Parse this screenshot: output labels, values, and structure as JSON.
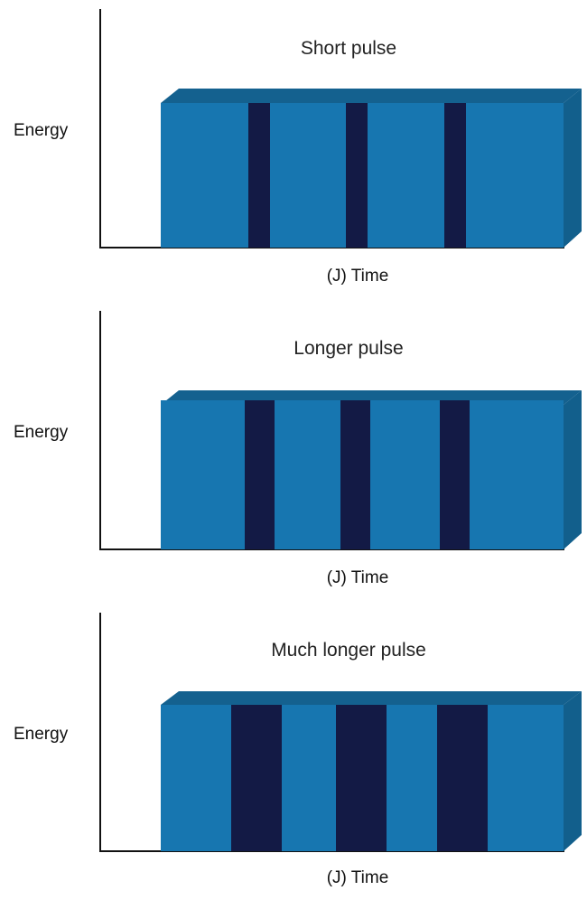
{
  "panels": [
    {
      "title": "Short pulse",
      "ylabel": "Energy",
      "xlabel": "(J) Time",
      "pulse_width": "short",
      "pulse_count": 3
    },
    {
      "title": "Longer pulse",
      "ylabel": "Energy",
      "xlabel": "(J) Time",
      "pulse_width": "longer",
      "pulse_count": 3
    },
    {
      "title": "Much longer pulse",
      "ylabel": "Energy",
      "xlabel": "(J) Time",
      "pulse_width": "much longer",
      "pulse_count": 3
    }
  ],
  "colors": {
    "block_front": "#1776b0",
    "block_top": "#14618f",
    "block_side": "#125f8c",
    "pulse": "#131a45",
    "axis": "#111111"
  }
}
